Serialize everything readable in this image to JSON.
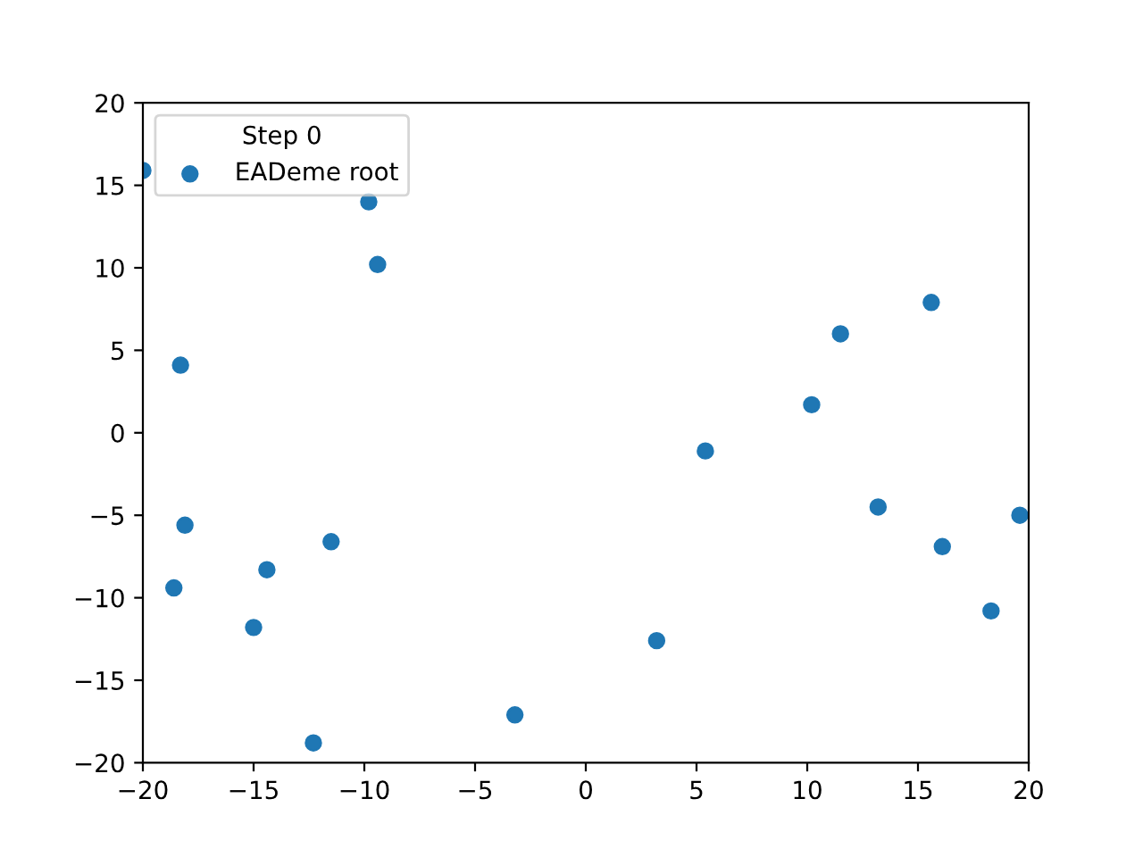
{
  "chart_data": {
    "type": "scatter",
    "legend_title": "Step 0",
    "legend": "top left",
    "marker": "circle",
    "grid": false,
    "x": [
      -20,
      -9.8,
      -9.4,
      -18.3,
      -18.1,
      -18.6,
      -14.4,
      -11.5,
      -15.0,
      -12.3,
      -3.2,
      3.2,
      5.4,
      10.2,
      11.5,
      15.6,
      13.2,
      16.1,
      18.3,
      19.6
    ],
    "series": [
      {
        "name": "EADeme root",
        "color": "#1f77b4",
        "values": [
          15.9,
          14.0,
          10.2,
          4.1,
          -5.6,
          -9.4,
          -8.3,
          -6.6,
          -11.8,
          -18.8,
          -17.1,
          -12.6,
          -1.1,
          1.7,
          6.0,
          7.9,
          -4.5,
          -6.9,
          -10.8,
          -5.0
        ]
      }
    ],
    "xlim": [
      -20,
      20
    ],
    "ylim": [
      -20,
      20
    ],
    "xticks": [
      {
        "value": -20,
        "label": "−20"
      },
      {
        "value": -15,
        "label": "−15"
      },
      {
        "value": -10,
        "label": "−10"
      },
      {
        "value": -5,
        "label": "−5"
      },
      0,
      5,
      10,
      15,
      20
    ],
    "yticks": [
      {
        "value": -20,
        "label": "−20"
      },
      {
        "value": -15,
        "label": "−15"
      },
      {
        "value": -10,
        "label": "−10"
      },
      {
        "value": -5,
        "label": "−5"
      },
      0,
      5,
      10,
      15,
      20
    ]
  }
}
